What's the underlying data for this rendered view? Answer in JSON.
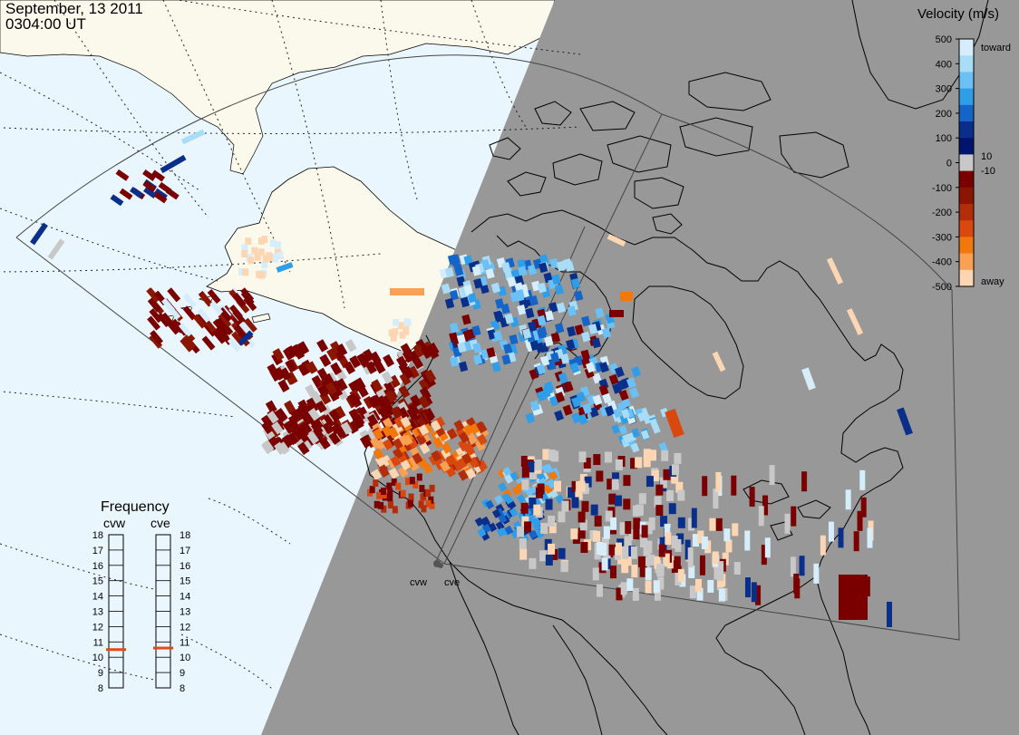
{
  "header": {
    "date": "September, 13 2011",
    "time": "0304:00 UT"
  },
  "radars": [
    {
      "code": "cvw"
    },
    {
      "code": "cve"
    }
  ],
  "legend": {
    "title": "Velocity (m/s)",
    "ticks": [
      "500",
      "400",
      "300",
      "200",
      "100",
      "0",
      "-100",
      "-200",
      "-300",
      "-400",
      "-500"
    ],
    "near_zero": [
      "10",
      "-10"
    ],
    "toward_label": "toward",
    "away_label": "away",
    "scale": [
      "#d6eefc",
      "#a9dcf7",
      "#6bc0f5",
      "#2f9de8",
      "#1565c8",
      "#0a2f8a",
      "#00156e",
      "#c8c8c8",
      "#7a0000",
      "#8a1500",
      "#b32d0a",
      "#d9480f",
      "#f2780c",
      "#f9a055",
      "#fcd6b3"
    ]
  },
  "frequency": {
    "title": "Frequency",
    "labels": [
      "cvw",
      "cve"
    ],
    "scale": [
      "18",
      "17",
      "16",
      "15",
      "14",
      "13",
      "12",
      "11",
      "10",
      "9",
      "8"
    ],
    "values_mhz": [
      10.5,
      10.6
    ],
    "marker_color": "#e24a1a"
  },
  "colors": {
    "ocean": "#eaf6fd",
    "land": "#fbf9ec",
    "night": "#989898"
  }
}
